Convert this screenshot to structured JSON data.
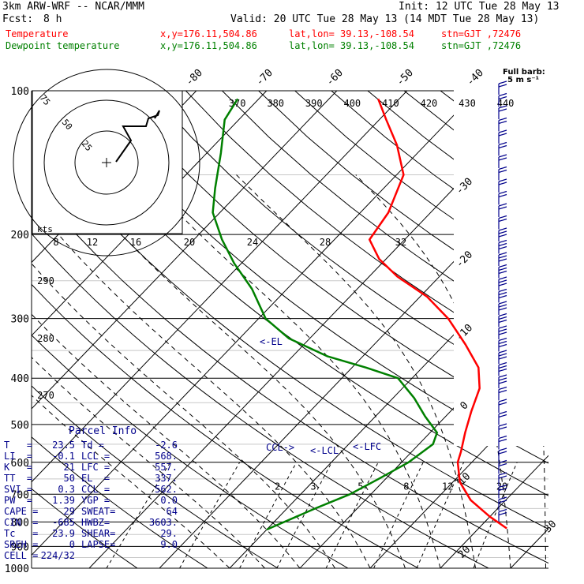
{
  "header": {
    "model": "3km ARW-WRF -- NCAR/MMM",
    "init": "Init: 12 UTC Tue 28 May 13",
    "fcst_label": "Fcst:",
    "fcst_value": "8 h",
    "valid": "Valid: 20 UTC Tue 28 May 13 (14 MDT Tue 28 May 13)"
  },
  "legend": [
    {
      "name": "Temperature",
      "xy": "x,y=176.11,504.86",
      "latlon": "lat,lon= 39.13,-108.54",
      "stn": "stn=GJT ,72476",
      "color": "#ff0000"
    },
    {
      "name": "Dewpoint temperature",
      "xy": "x,y=176.11,504.86",
      "latlon": "lat,lon= 39.13,-108.54",
      "stn": "stn=GJT ,72476",
      "color": "#008000"
    }
  ],
  "parcel": {
    "title": "Parcel Info",
    "rows": [
      [
        "T   =",
        "23.5",
        "Td =",
        "-2.6"
      ],
      [
        "LI  =",
        "-0.1",
        "LCL =",
        "568."
      ],
      [
        "K   =",
        "21",
        "LFC =",
        "557."
      ],
      [
        "TT  =",
        "50",
        "EL  =",
        "337."
      ],
      [
        "SVI =",
        "0.3",
        "CCL =",
        "562."
      ],
      [
        "PW  =",
        "1.39",
        "YGP =",
        "0.0"
      ],
      [
        "CAPE =",
        "29",
        "SWEAT=",
        "64"
      ],
      [
        "CIN  =",
        "-685",
        "HWBZ=",
        "3603."
      ],
      [
        "Tc   =",
        "23.9",
        "SHEAR=",
        "29."
      ],
      [
        "SREH =",
        "0",
        "LAPSE=",
        "9.0"
      ],
      [
        "CELL =",
        "224/32",
        "",
        ""
      ]
    ]
  },
  "chart_data": {
    "type": "line",
    "subtype": "skew-T log-p",
    "x_axis": "temperature (C)",
    "y_axis": "pressure (hPa), log scale",
    "pressure_levels": [
      100,
      200,
      300,
      400,
      500,
      600,
      700,
      800,
      900,
      1000
    ],
    "isotherm_labels": [
      -80,
      -70,
      -60,
      -50,
      -40,
      -30,
      -20,
      -10,
      0,
      10,
      20,
      30,
      40
    ],
    "theta_labels": [
      370,
      380,
      390,
      400,
      410,
      420,
      430,
      440
    ],
    "theta_side_labels": [
      290,
      280,
      270
    ],
    "mixing_ratio_labels": [
      2,
      3,
      5,
      8,
      12,
      20
    ],
    "hodograph_speed_labels": [
      8,
      12,
      16,
      20,
      24,
      28,
      32
    ],
    "hodograph_ring_labels": [
      25,
      50,
      75
    ],
    "hodograph_unit": "kts",
    "wind_label": "Full barb:\n5 m s⁻¹",
    "annotations": [
      "<-EL",
      "CCL->",
      "<-LCL",
      "<-LFC"
    ],
    "series": [
      {
        "name": "Temperature",
        "color": "#ff0000",
        "points": [
          [
            825,
            24
          ],
          [
            780,
            20
          ],
          [
            720,
            15
          ],
          [
            660,
            11
          ],
          [
            600,
            8
          ],
          [
            570,
            7
          ],
          [
            520,
            5
          ],
          [
            470,
            3
          ],
          [
            420,
            1
          ],
          [
            380,
            -2
          ],
          [
            340,
            -7
          ],
          [
            300,
            -13
          ],
          [
            270,
            -19
          ],
          [
            245,
            -26
          ],
          [
            225,
            -31
          ],
          [
            205,
            -35
          ],
          [
            180,
            -36
          ],
          [
            150,
            -39
          ],
          [
            130,
            -44
          ],
          [
            115,
            -49
          ],
          [
            104,
            -53
          ]
        ]
      },
      {
        "name": "Dewpoint temperature",
        "color": "#008000",
        "points": [
          [
            830,
            -10
          ],
          [
            750,
            -6
          ],
          [
            700,
            -3
          ],
          [
            650,
            -1
          ],
          [
            600,
            1
          ],
          [
            550,
            2
          ],
          [
            520,
            1
          ],
          [
            480,
            -3
          ],
          [
            440,
            -7
          ],
          [
            400,
            -12
          ],
          [
            380,
            -18
          ],
          [
            360,
            -25
          ],
          [
            330,
            -33
          ],
          [
            300,
            -39
          ],
          [
            260,
            -45
          ],
          [
            230,
            -51
          ],
          [
            205,
            -56
          ],
          [
            180,
            -61
          ],
          [
            160,
            -64
          ],
          [
            135,
            -68
          ],
          [
            115,
            -72
          ],
          [
            104,
            -73
          ]
        ]
      }
    ]
  }
}
